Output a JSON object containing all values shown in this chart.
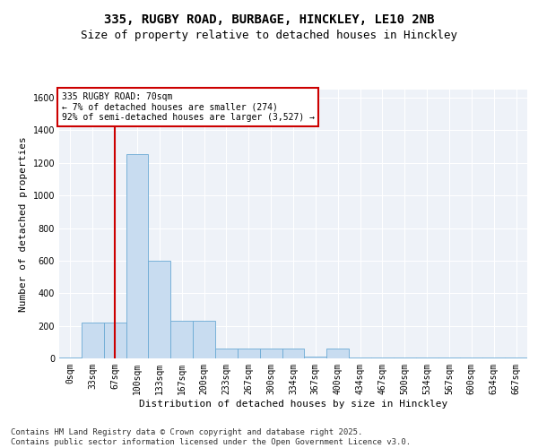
{
  "title_line1": "335, RUGBY ROAD, BURBAGE, HINCKLEY, LE10 2NB",
  "title_line2": "Size of property relative to detached houses in Hinckley",
  "xlabel": "Distribution of detached houses by size in Hinckley",
  "ylabel": "Number of detached properties",
  "categories": [
    "0sqm",
    "33sqm",
    "67sqm",
    "100sqm",
    "133sqm",
    "167sqm",
    "200sqm",
    "233sqm",
    "267sqm",
    "300sqm",
    "334sqm",
    "367sqm",
    "400sqm",
    "434sqm",
    "467sqm",
    "500sqm",
    "534sqm",
    "567sqm",
    "600sqm",
    "634sqm",
    "667sqm"
  ],
  "values": [
    5,
    220,
    220,
    1255,
    600,
    230,
    230,
    60,
    60,
    60,
    60,
    10,
    60,
    5,
    5,
    5,
    5,
    5,
    5,
    5,
    5
  ],
  "bar_color": "#c8dcf0",
  "bar_edge_color": "#6aaad4",
  "plot_bg_color": "#eef2f8",
  "grid_color": "#ffffff",
  "vline_color": "#cc0000",
  "vline_x_index": 2,
  "annotation_text": "335 RUGBY ROAD: 70sqm\n← 7% of detached houses are smaller (274)\n92% of semi-detached houses are larger (3,527) →",
  "annotation_box_color": "#cc0000",
  "annotation_bg": "#ffffff",
  "ylim": [
    0,
    1650
  ],
  "yticks": [
    0,
    200,
    400,
    600,
    800,
    1000,
    1200,
    1400,
    1600
  ],
  "footer_line1": "Contains HM Land Registry data © Crown copyright and database right 2025.",
  "footer_line2": "Contains public sector information licensed under the Open Government Licence v3.0.",
  "title_fontsize": 10,
  "subtitle_fontsize": 9,
  "axis_label_fontsize": 8,
  "tick_fontsize": 7,
  "annot_fontsize": 7,
  "footer_fontsize": 6.5
}
